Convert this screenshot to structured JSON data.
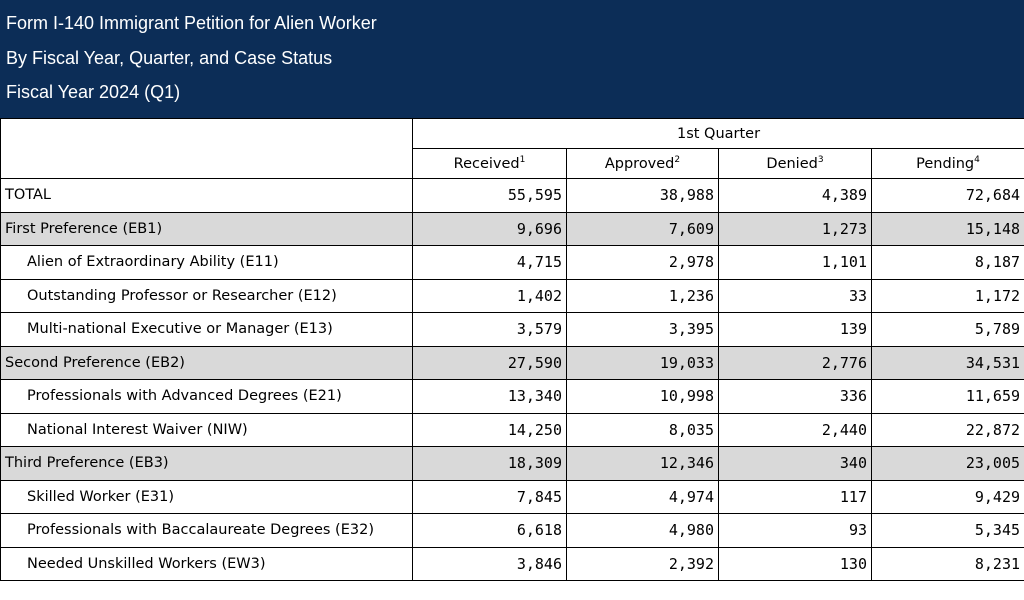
{
  "header": {
    "title": "Form I-140 Immigrant Petition for Alien Worker",
    "subtitle": "By Fiscal Year, Quarter, and Case Status",
    "period": "Fiscal Year 2024 (Q1)"
  },
  "table": {
    "quarter_label": "1st Quarter",
    "columns": [
      {
        "label": "Received",
        "note": "1"
      },
      {
        "label": "Approved",
        "note": "2"
      },
      {
        "label": "Denied",
        "note": "3"
      },
      {
        "label": "Pending",
        "note": "4"
      }
    ],
    "rows": [
      {
        "label": "TOTAL",
        "kind": "total",
        "values": [
          "55,595",
          "38,988",
          "4,389",
          "72,684"
        ]
      },
      {
        "label": "First Preference (EB1)",
        "kind": "group",
        "values": [
          "9,696",
          "7,609",
          "1,273",
          "15,148"
        ]
      },
      {
        "label": "Alien of Extraordinary Ability (E11)",
        "kind": "sub",
        "values": [
          "4,715",
          "2,978",
          "1,101",
          "8,187"
        ]
      },
      {
        "label": "Outstanding Professor or Researcher (E12)",
        "kind": "sub",
        "values": [
          "1,402",
          "1,236",
          "33",
          "1,172"
        ]
      },
      {
        "label": "Multi-national Executive or Manager (E13)",
        "kind": "sub",
        "values": [
          "3,579",
          "3,395",
          "139",
          "5,789"
        ]
      },
      {
        "label": "Second Preference (EB2)",
        "kind": "group",
        "values": [
          "27,590",
          "19,033",
          "2,776",
          "34,531"
        ]
      },
      {
        "label": "Professionals with Advanced Degrees (E21)",
        "kind": "sub",
        "values": [
          "13,340",
          "10,998",
          "336",
          "11,659"
        ]
      },
      {
        "label": "National Interest Waiver (NIW)",
        "kind": "sub",
        "values": [
          "14,250",
          "8,035",
          "2,440",
          "22,872"
        ]
      },
      {
        "label": "Third Preference (EB3)",
        "kind": "group",
        "values": [
          "18,309",
          "12,346",
          "340",
          "23,005"
        ]
      },
      {
        "label": "Skilled Worker (E31)",
        "kind": "sub",
        "values": [
          "7,845",
          "4,974",
          "117",
          "9,429"
        ]
      },
      {
        "label": "Professionals with Baccalaureate Degrees (E32)",
        "kind": "sub",
        "values": [
          "6,618",
          "4,980",
          "93",
          "5,345"
        ]
      },
      {
        "label": "Needed Unskilled Workers (EW3)",
        "kind": "sub",
        "values": [
          "3,846",
          "2,392",
          "130",
          "8,231"
        ]
      }
    ]
  },
  "colors": {
    "header_bg": "#0c2d57",
    "group_row_bg": "#d9d9d9"
  }
}
